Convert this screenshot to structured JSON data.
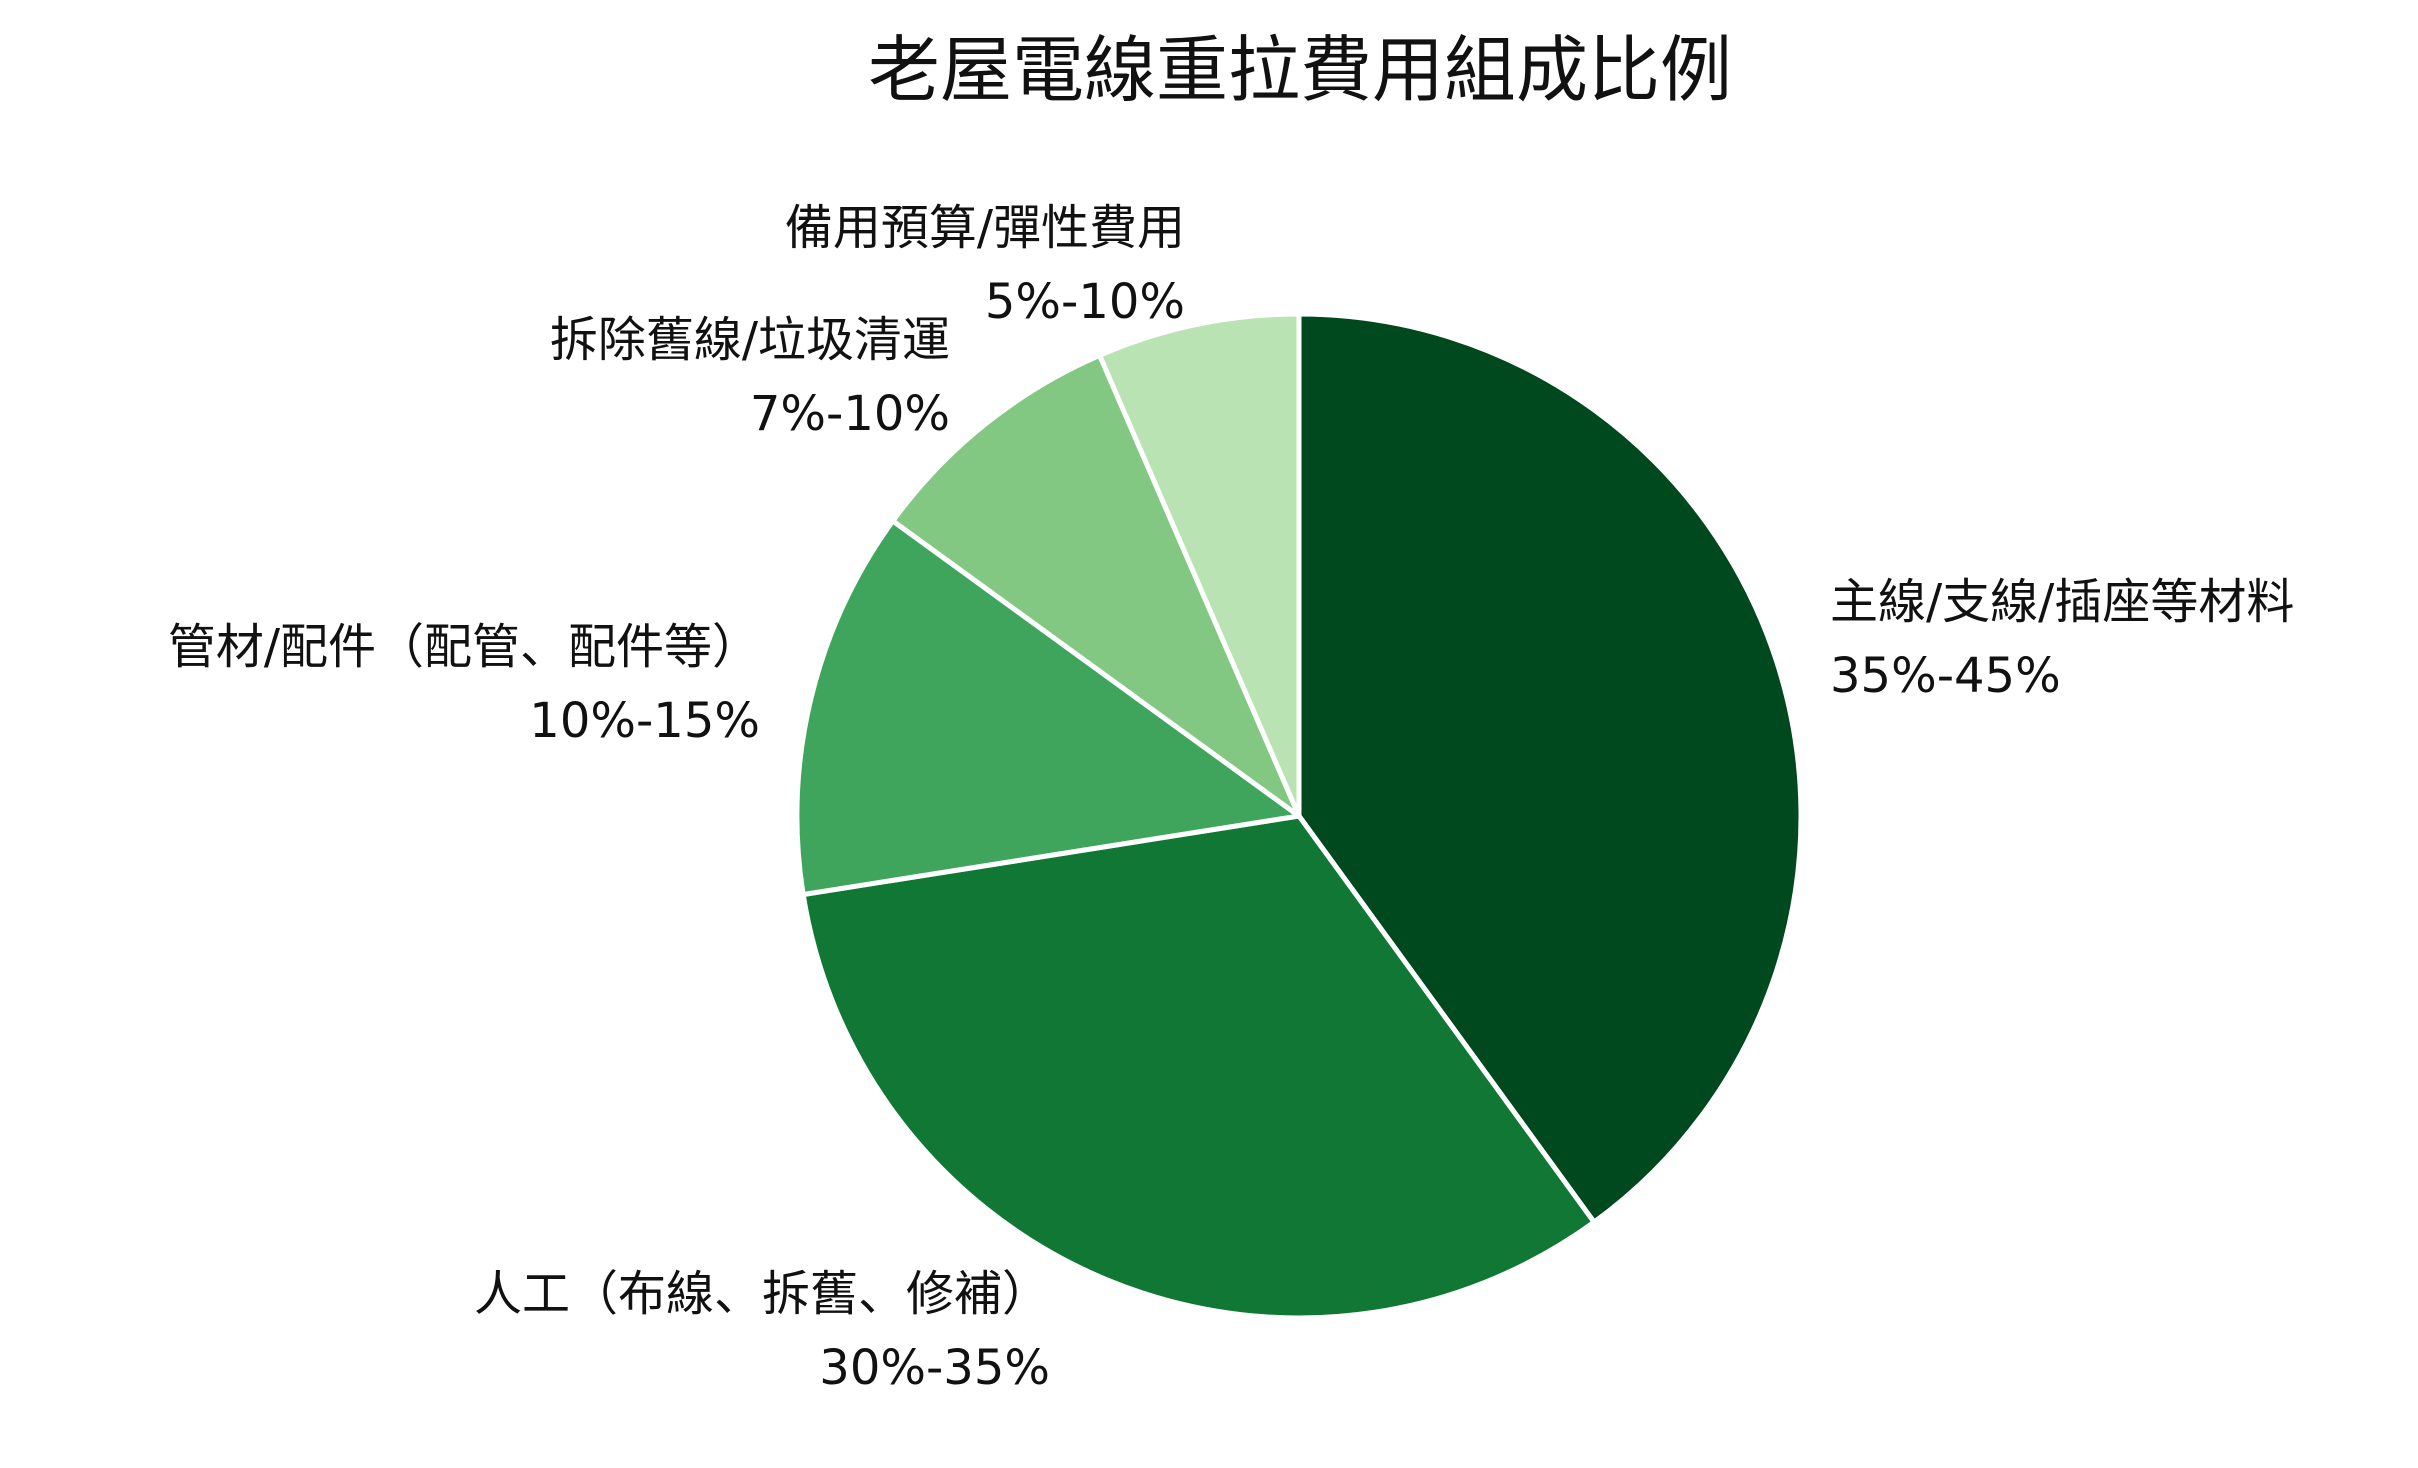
{
  "chart_data": {
    "type": "pie",
    "title": "老屋電線重拉費用組成比例",
    "start": "top",
    "direction": "clockwise",
    "slices": [
      {
        "name": "主線/支線/插座等材料",
        "range_label": "35%-45%",
        "value": 40,
        "color": "#00491f"
      },
      {
        "name": "人工（布線、拆舊、修補）",
        "range_label": "30%-35%",
        "value": 32.5,
        "color": "#107735"
      },
      {
        "name": "管材/配件（配管、配件等）",
        "range_label": "10%-15%",
        "value": 12.5,
        "color": "#3fa55d"
      },
      {
        "name": "拆除舊線/垃圾清運",
        "range_label": "7%-10%",
        "value": 8.5,
        "color": "#82c883"
      },
      {
        "name": "備用預算/彈性費用",
        "range_label": "5%-10%",
        "value": 6.5,
        "color": "#b9e3b2"
      }
    ]
  }
}
